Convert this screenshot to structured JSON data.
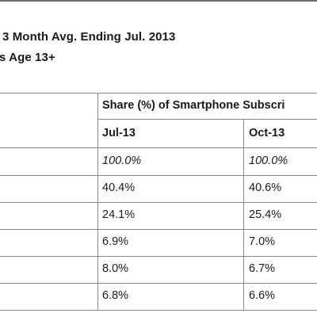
{
  "title": {
    "line1": "3 Month Avg. Ending Jul. 2013",
    "line2": "s Age 13+"
  },
  "table": {
    "group_header": "Share (%) of Smartphone Subscri",
    "columns": [
      "Jul-13",
      "Oct-13"
    ],
    "rows": [
      {
        "jul": "100.0%",
        "oct": "100.0%"
      },
      {
        "jul": "40.4%",
        "oct": "40.6%"
      },
      {
        "jul": "24.1%",
        "oct": "25.4%"
      },
      {
        "jul": "6.9%",
        "oct": "7.0%"
      },
      {
        "jul": "8.0%",
        "oct": "6.7%"
      },
      {
        "jul": "6.8%",
        "oct": "6.6%"
      }
    ]
  }
}
